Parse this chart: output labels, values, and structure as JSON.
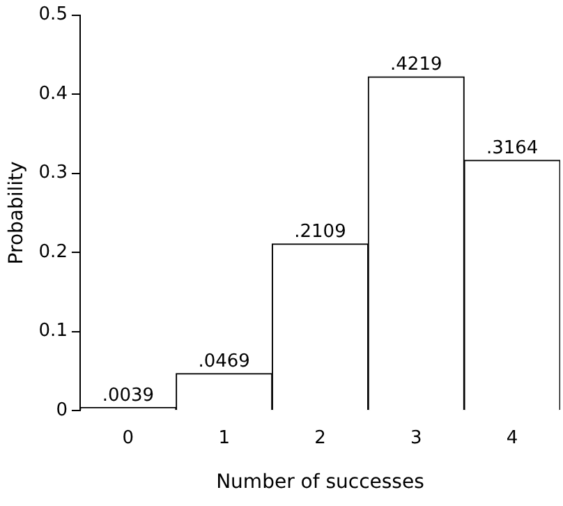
{
  "chart_data": {
    "type": "bar",
    "xlabel": "Number of successes",
    "ylabel": "Probability",
    "categories": [
      "0",
      "1",
      "2",
      "3",
      "4"
    ],
    "values": [
      0.0039,
      0.0469,
      0.2109,
      0.4219,
      0.3164
    ],
    "value_labels": [
      ".0039",
      ".0469",
      ".2109",
      ".4219",
      ".3164"
    ],
    "color": "#ffffff",
    "ylim": [
      0,
      0.5
    ],
    "yticks": [
      0,
      0.1,
      0.2,
      0.3,
      0.4,
      0.5
    ],
    "grid": false,
    "legend": false
  }
}
